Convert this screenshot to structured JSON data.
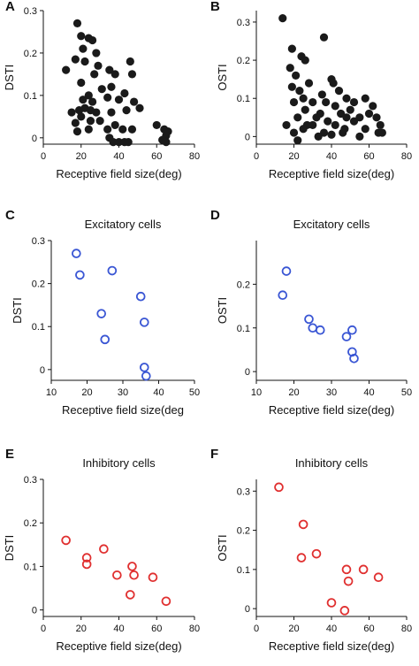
{
  "figure": {
    "panels": [
      {
        "letter": "A",
        "title": "",
        "chart_data": {
          "type": "scatter",
          "title": "",
          "xlabel": "Receptive field size(deg)",
          "ylabel": "DSTI",
          "xlim": [
            0,
            80
          ],
          "ylim": [
            -0.015,
            0.3
          ],
          "xticks": [
            0,
            20,
            40,
            60,
            80
          ],
          "yticks": [
            0,
            0.1,
            0.2,
            0.3
          ],
          "ytick_labels": [
            "0",
            "0.1",
            "0.2",
            "0.3"
          ],
          "marker": "filled",
          "color": "#1a1a1a",
          "points": [
            [
              18,
              0.27
            ],
            [
              12,
              0.16
            ],
            [
              20,
              0.24
            ],
            [
              21,
              0.21
            ],
            [
              24,
              0.235
            ],
            [
              26,
              0.23
            ],
            [
              28,
              0.2
            ],
            [
              17,
              0.185
            ],
            [
              22,
              0.18
            ],
            [
              29,
              0.17
            ],
            [
              35,
              0.16
            ],
            [
              46,
              0.18
            ],
            [
              27,
              0.15
            ],
            [
              38,
              0.15
            ],
            [
              47,
              0.15
            ],
            [
              20,
              0.13
            ],
            [
              31,
              0.115
            ],
            [
              24,
              0.1
            ],
            [
              36,
              0.12
            ],
            [
              26,
              0.085
            ],
            [
              34,
              0.095
            ],
            [
              43,
              0.105
            ],
            [
              21,
              0.09
            ],
            [
              40,
              0.09
            ],
            [
              48,
              0.085
            ],
            [
              15,
              0.06
            ],
            [
              19,
              0.065
            ],
            [
              22,
              0.07
            ],
            [
              25,
              0.065
            ],
            [
              28,
              0.06
            ],
            [
              20,
              0.05
            ],
            [
              30,
              0.04
            ],
            [
              36,
              0.06
            ],
            [
              44,
              0.065
            ],
            [
              51,
              0.07
            ],
            [
              17,
              0.035
            ],
            [
              25,
              0.04
            ],
            [
              38,
              0.03
            ],
            [
              18,
              0.015
            ],
            [
              24,
              0.02
            ],
            [
              35,
              0.0
            ],
            [
              34,
              0.02
            ],
            [
              60,
              0.03
            ],
            [
              64,
              0.02
            ],
            [
              66,
              0.015
            ],
            [
              42,
              0.02
            ],
            [
              47,
              0.02
            ],
            [
              65,
              0.005
            ],
            [
              37,
              -0.01
            ],
            [
              40,
              -0.01
            ],
            [
              43,
              -0.01
            ],
            [
              45,
              -0.01
            ],
            [
              63,
              -0.005
            ],
            [
              65,
              -0.01
            ]
          ]
        }
      },
      {
        "letter": "B",
        "title": "",
        "chart_data": {
          "type": "scatter",
          "title": "",
          "xlabel": "Receptive field size(deg)",
          "ylabel": "OSTI",
          "xlim": [
            0,
            80
          ],
          "ylim": [
            -0.02,
            0.33
          ],
          "xticks": [
            0,
            20,
            40,
            60,
            80
          ],
          "yticks": [
            0,
            0.1,
            0.2,
            0.3
          ],
          "ytick_labels": [
            "0",
            "0.1",
            "0.2",
            "0.3"
          ],
          "marker": "filled",
          "color": "#1a1a1a",
          "points": [
            [
              14,
              0.31
            ],
            [
              19,
              0.23
            ],
            [
              36,
              0.26
            ],
            [
              24,
              0.21
            ],
            [
              26,
              0.2
            ],
            [
              18,
              0.18
            ],
            [
              21,
              0.16
            ],
            [
              19,
              0.13
            ],
            [
              23,
              0.12
            ],
            [
              28,
              0.14
            ],
            [
              35,
              0.11
            ],
            [
              40,
              0.15
            ],
            [
              41,
              0.14
            ],
            [
              44,
              0.12
            ],
            [
              48,
              0.1
            ],
            [
              20,
              0.09
            ],
            [
              25,
              0.1
            ],
            [
              30,
              0.09
            ],
            [
              37,
              0.09
            ],
            [
              42,
              0.08
            ],
            [
              52,
              0.09
            ],
            [
              58,
              0.1
            ],
            [
              26,
              0.07
            ],
            [
              34,
              0.06
            ],
            [
              45,
              0.06
            ],
            [
              50,
              0.07
            ],
            [
              62,
              0.08
            ],
            [
              22,
              0.05
            ],
            [
              32,
              0.05
            ],
            [
              38,
              0.04
            ],
            [
              48,
              0.05
            ],
            [
              55,
              0.05
            ],
            [
              60,
              0.06
            ],
            [
              16,
              0.03
            ],
            [
              27,
              0.03
            ],
            [
              30,
              0.03
            ],
            [
              42,
              0.03
            ],
            [
              47,
              0.02
            ],
            [
              52,
              0.04
            ],
            [
              64,
              0.05
            ],
            [
              20,
              0.01
            ],
            [
              25,
              0.02
            ],
            [
              36,
              0.01
            ],
            [
              46,
              0.01
            ],
            [
              58,
              0.02
            ],
            [
              65,
              0.01
            ],
            [
              22,
              -0.01
            ],
            [
              33,
              0.0
            ],
            [
              40,
              0.005
            ],
            [
              55,
              0.0
            ],
            [
              67,
              0.01
            ],
            [
              66,
              0.03
            ]
          ]
        }
      },
      {
        "letter": "C",
        "title": "Excitatory cells",
        "chart_data": {
          "type": "scatter",
          "title": "Excitatory cells",
          "xlabel": "Receptive field size(deg",
          "ylabel": "DSTI",
          "xlim": [
            10,
            50
          ],
          "ylim": [
            -0.025,
            0.3
          ],
          "xticks": [
            10,
            20,
            30,
            40,
            50
          ],
          "yticks": [
            0,
            0.1,
            0.2,
            0.3
          ],
          "ytick_labels": [
            "0",
            "0.1",
            "0.2",
            "0.3"
          ],
          "marker": "open",
          "color": "#3a56d4",
          "points": [
            [
              17,
              0.27
            ],
            [
              18,
              0.22
            ],
            [
              27,
              0.23
            ],
            [
              24,
              0.13
            ],
            [
              25,
              0.07
            ],
            [
              35,
              0.17
            ],
            [
              36,
              0.11
            ],
            [
              36,
              0.005
            ],
            [
              36.5,
              -0.015
            ]
          ]
        }
      },
      {
        "letter": "D",
        "title": "Excitatory cells",
        "chart_data": {
          "type": "scatter",
          "title": "Excitatory cells",
          "xlabel": "Receptive field size(deg)",
          "ylabel": "OSTI",
          "xlim": [
            10,
            50
          ],
          "ylim": [
            -0.02,
            0.3
          ],
          "xticks": [
            10,
            20,
            30,
            40,
            50
          ],
          "yticks": [
            0,
            0.1,
            0.2
          ],
          "ytick_labels": [
            "0",
            "0.1",
            "0.2"
          ],
          "marker": "open",
          "color": "#3a56d4",
          "points": [
            [
              17,
              0.175
            ],
            [
              18,
              0.23
            ],
            [
              24,
              0.12
            ],
            [
              25,
              0.1
            ],
            [
              27,
              0.095
            ],
            [
              34,
              0.08
            ],
            [
              35.5,
              0.095
            ],
            [
              35.5,
              0.045
            ],
            [
              36,
              0.03
            ]
          ]
        }
      },
      {
        "letter": "E",
        "title": "Inhibitory cells",
        "chart_data": {
          "type": "scatter",
          "title": "Inhibitory cells",
          "xlabel": "Receptive field size(deg)",
          "ylabel": "DSTI",
          "xlim": [
            0,
            80
          ],
          "ylim": [
            -0.015,
            0.3
          ],
          "xticks": [
            0,
            20,
            40,
            60,
            80
          ],
          "yticks": [
            0,
            0.1,
            0.2,
            0.3
          ],
          "ytick_labels": [
            "0",
            "0.1",
            "0.2",
            "0.3"
          ],
          "marker": "open",
          "color": "#e03030",
          "points": [
            [
              12,
              0.16
            ],
            [
              23,
              0.12
            ],
            [
              23,
              0.105
            ],
            [
              32,
              0.14
            ],
            [
              39,
              0.08
            ],
            [
              47,
              0.1
            ],
            [
              48,
              0.08
            ],
            [
              58,
              0.075
            ],
            [
              46,
              0.035
            ],
            [
              65,
              0.02
            ]
          ]
        }
      },
      {
        "letter": "F",
        "title": "Inhibitory cells",
        "chart_data": {
          "type": "scatter",
          "title": "Inhibitory cells",
          "xlabel": "Receptive field size(deg)",
          "ylabel": "OSTI",
          "xlim": [
            0,
            80
          ],
          "ylim": [
            -0.02,
            0.33
          ],
          "xticks": [
            0,
            20,
            40,
            60,
            80
          ],
          "yticks": [
            0,
            0.1,
            0.2,
            0.3
          ],
          "ytick_labels": [
            "0",
            "0.1",
            "0.2",
            "0.3"
          ],
          "marker": "open",
          "color": "#e03030",
          "points": [
            [
              12,
              0.31
            ],
            [
              25,
              0.215
            ],
            [
              24,
              0.13
            ],
            [
              32,
              0.14
            ],
            [
              48,
              0.1
            ],
            [
              57,
              0.1
            ],
            [
              49,
              0.07
            ],
            [
              65,
              0.08
            ],
            [
              40,
              0.015
            ],
            [
              47,
              -0.005
            ]
          ]
        }
      }
    ]
  }
}
